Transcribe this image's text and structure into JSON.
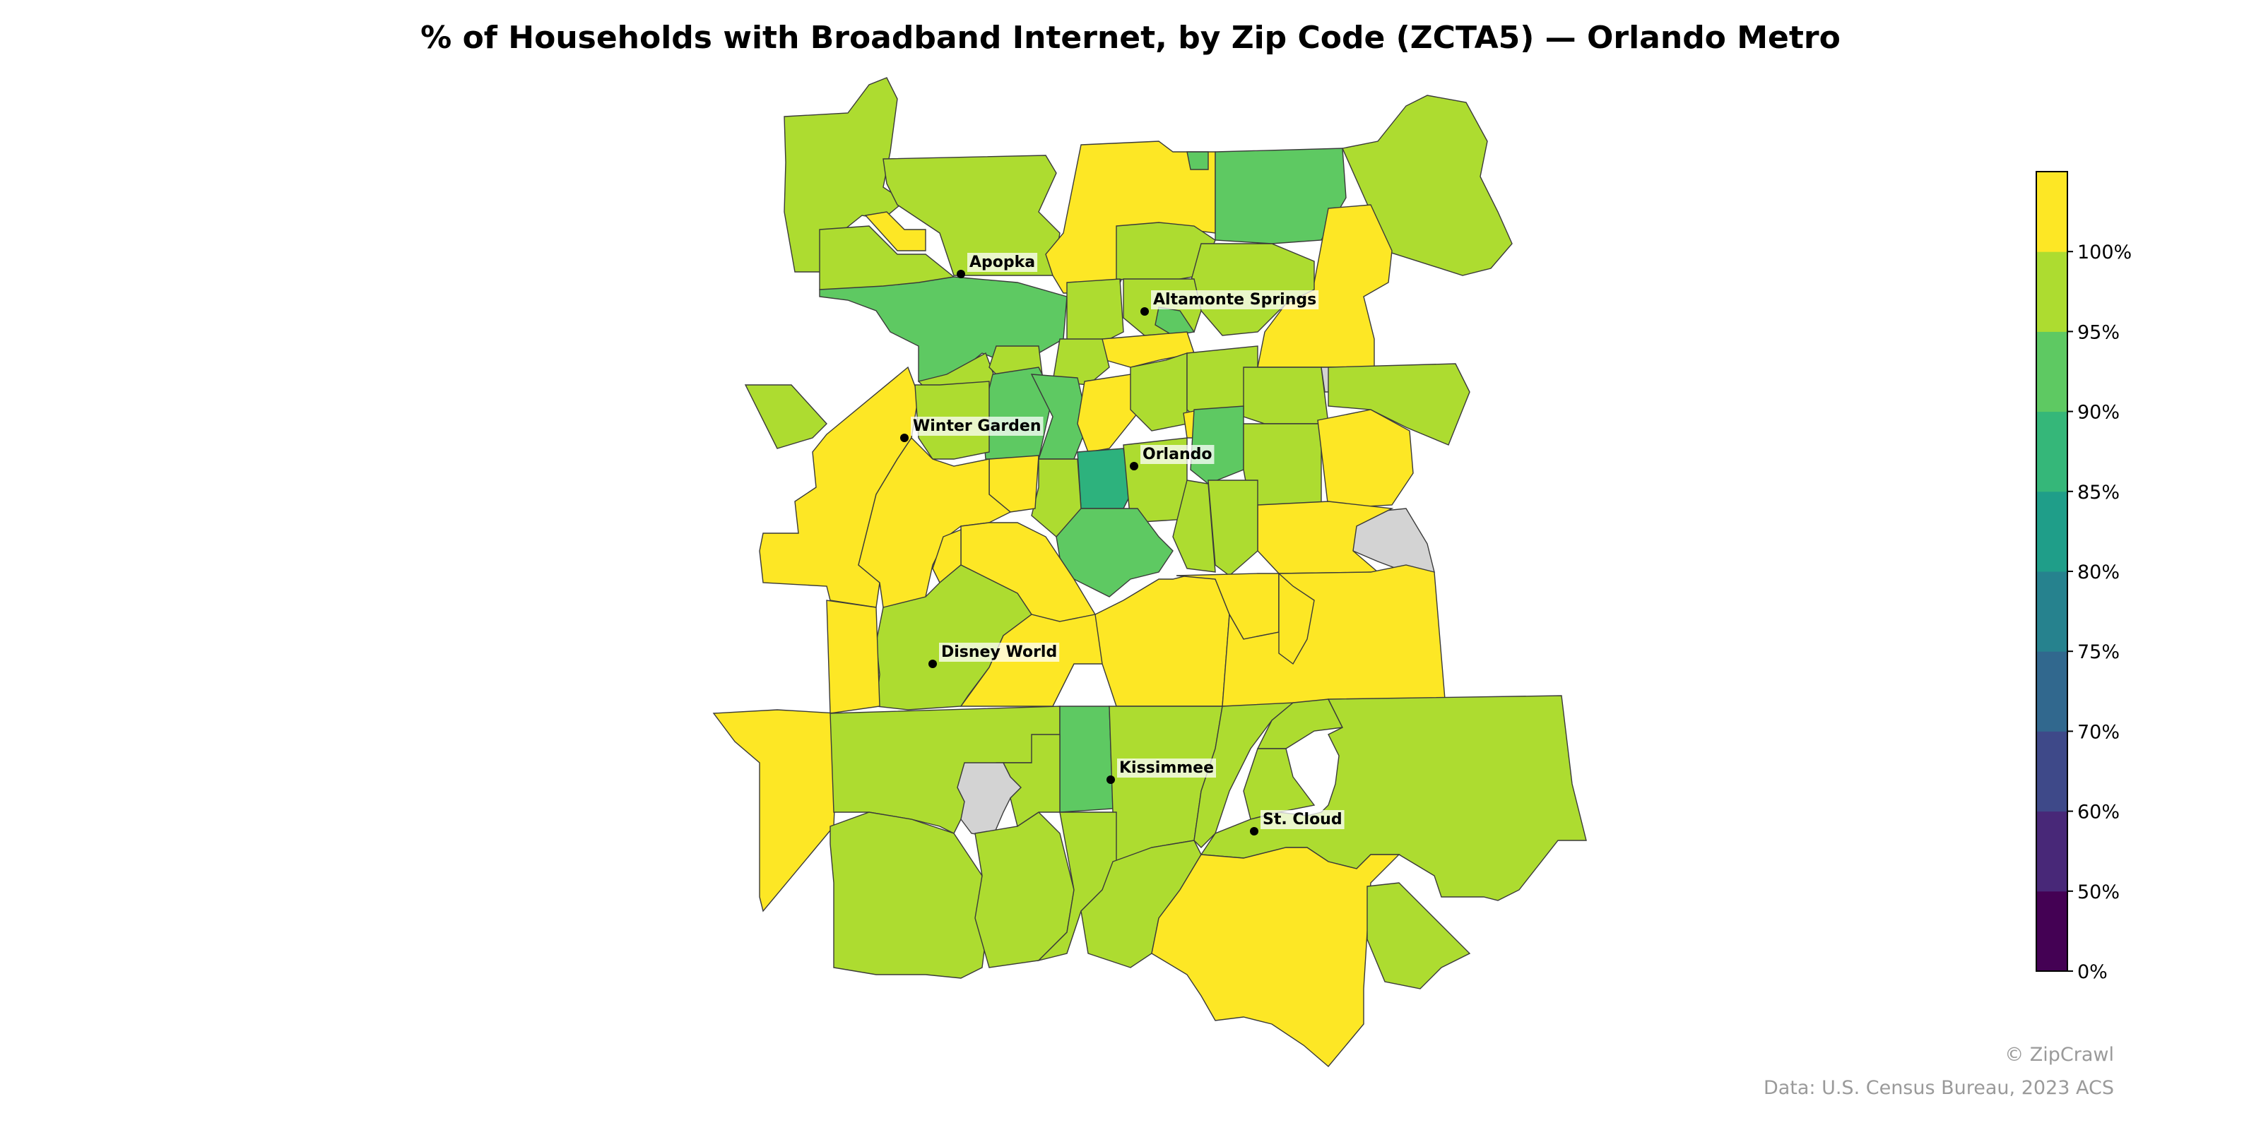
{
  "title": "% of Households with Broadband Internet, by Zip Code (ZCTA5) — Orlando Metro",
  "colors": {
    "no_data": "#d3d3d3",
    "outline": "#3a3a3a",
    "bins": [
      "#440154",
      "#482878",
      "#3e4989",
      "#31688e",
      "#26828e",
      "#1f9e89",
      "#35b779",
      "#5ec962",
      "#addc30",
      "#fde725"
    ]
  },
  "legend": {
    "ticks": [
      "0%",
      "50%",
      "60%",
      "70%",
      "75%",
      "80%",
      "85%",
      "90%",
      "95%",
      "100%"
    ]
  },
  "cities": [
    {
      "name": "Apopka"
    },
    {
      "name": "Altamonte Springs"
    },
    {
      "name": "Winter Garden"
    },
    {
      "name": "Orlando"
    },
    {
      "name": "Disney World"
    },
    {
      "name": "Kissimmee"
    },
    {
      "name": "St. Cloud"
    }
  ],
  "footer": {
    "credit": "© ZipCrawl",
    "source": "Data: U.S. Census Bureau, 2023 ACS"
  }
}
